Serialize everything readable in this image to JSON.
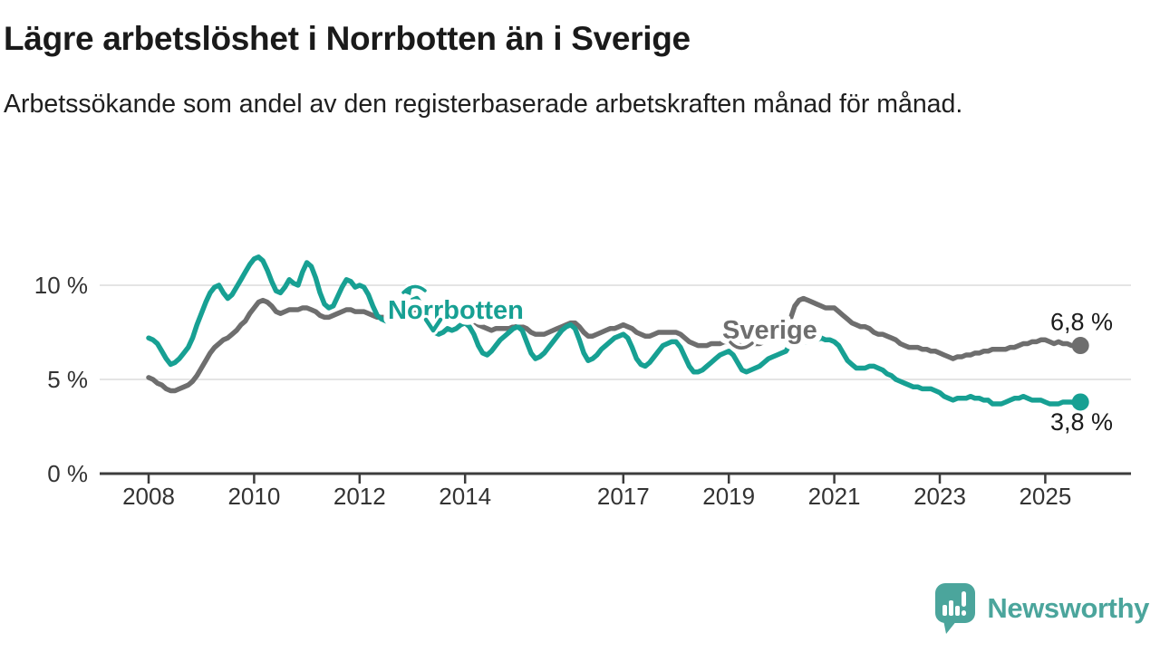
{
  "title": "Lägre arbetslöshet i Norrbotten än i Sverige",
  "subtitle": "Arbetssökande som andel av den registerbaserade arbetskraften månad för månad.",
  "branding": {
    "logo_text": "Newsworthy",
    "logo_color": "#4BA59C",
    "logo_icon": "speech-bubble-bar-chart"
  },
  "chart_data": {
    "type": "line",
    "unit": "%",
    "frequency": "monthly",
    "x_start": "2008-01",
    "x_end": "2025-09",
    "x_tick_years": [
      2008,
      2010,
      2012,
      2014,
      2017,
      2019,
      2021,
      2023,
      2025
    ],
    "x_tick_labels": [
      "2008",
      "2010",
      "2012",
      "2014",
      "2017",
      "2019",
      "2021",
      "2023",
      "2025"
    ],
    "y_ticks": [
      0,
      5,
      10
    ],
    "y_tick_labels": [
      "0 %",
      "5 %",
      "10 %"
    ],
    "ylim": [
      0,
      12
    ],
    "grid": "horizontal",
    "colors": {
      "norrbotten": "#17A093",
      "sverige": "#6E6E6E",
      "gridline": "#DCDCDC",
      "axis": "#3C3C3C",
      "tick_text": "#333333",
      "value_text": "#1A1A1A"
    },
    "series": [
      {
        "name": "Sverige",
        "color": "#6E6E6E",
        "end_value": 6.8,
        "end_label": "6,8 %",
        "values": [
          5.1,
          5.0,
          4.8,
          4.7,
          4.5,
          4.4,
          4.4,
          4.5,
          4.6,
          4.7,
          4.9,
          5.2,
          5.6,
          6.0,
          6.4,
          6.7,
          6.9,
          7.1,
          7.2,
          7.4,
          7.6,
          7.9,
          8.1,
          8.5,
          8.8,
          9.1,
          9.2,
          9.1,
          8.9,
          8.6,
          8.5,
          8.6,
          8.7,
          8.7,
          8.7,
          8.8,
          8.8,
          8.7,
          8.6,
          8.4,
          8.3,
          8.3,
          8.4,
          8.5,
          8.6,
          8.7,
          8.7,
          8.6,
          8.6,
          8.6,
          8.5,
          8.4,
          8.3,
          8.3,
          8.3,
          8.4,
          8.5,
          8.5,
          8.5,
          8.6,
          8.7,
          8.7,
          8.6,
          8.5,
          8.4,
          8.4,
          8.4,
          8.5,
          8.5,
          8.5,
          8.4,
          8.4,
          8.4,
          8.3,
          8.1,
          7.9,
          7.8,
          7.7,
          7.6,
          7.7,
          7.7,
          7.7,
          7.7,
          7.8,
          7.8,
          7.8,
          7.7,
          7.5,
          7.4,
          7.4,
          7.4,
          7.5,
          7.6,
          7.7,
          7.8,
          7.9,
          8.0,
          8.0,
          7.8,
          7.5,
          7.3,
          7.3,
          7.4,
          7.5,
          7.6,
          7.7,
          7.7,
          7.8,
          7.9,
          7.8,
          7.7,
          7.5,
          7.4,
          7.3,
          7.3,
          7.4,
          7.5,
          7.5,
          7.5,
          7.5,
          7.5,
          7.4,
          7.2,
          7.0,
          6.9,
          6.8,
          6.8,
          6.8,
          6.9,
          6.9,
          6.9,
          7.0,
          7.0,
          6.9,
          6.8,
          6.8,
          6.8,
          6.8,
          6.9,
          6.9,
          7.0,
          7.1,
          7.1,
          7.2,
          7.4,
          7.6,
          8.2,
          8.9,
          9.2,
          9.3,
          9.2,
          9.1,
          9.0,
          8.9,
          8.8,
          8.8,
          8.8,
          8.6,
          8.4,
          8.2,
          8.0,
          7.9,
          7.8,
          7.8,
          7.7,
          7.5,
          7.4,
          7.4,
          7.3,
          7.2,
          7.1,
          6.9,
          6.8,
          6.7,
          6.7,
          6.7,
          6.6,
          6.6,
          6.5,
          6.5,
          6.4,
          6.3,
          6.2,
          6.1,
          6.2,
          6.2,
          6.3,
          6.3,
          6.4,
          6.4,
          6.5,
          6.5,
          6.6,
          6.6,
          6.6,
          6.6,
          6.7,
          6.7,
          6.8,
          6.9,
          6.9,
          7.0,
          7.0,
          7.1,
          7.1,
          7.0,
          6.9,
          7.0,
          6.9,
          6.9,
          6.8,
          6.8,
          6.8
        ]
      },
      {
        "name": "Norrbotten",
        "color": "#17A093",
        "end_value": 3.8,
        "end_label": "3,8 %",
        "values": [
          7.2,
          7.1,
          6.9,
          6.5,
          6.1,
          5.8,
          5.9,
          6.1,
          6.4,
          6.7,
          7.2,
          7.9,
          8.5,
          9.1,
          9.6,
          9.9,
          10.0,
          9.6,
          9.3,
          9.5,
          9.9,
          10.3,
          10.7,
          11.1,
          11.4,
          11.5,
          11.3,
          10.8,
          10.2,
          9.7,
          9.6,
          9.9,
          10.3,
          10.1,
          10.0,
          10.7,
          11.2,
          11.0,
          10.4,
          9.6,
          9.0,
          8.8,
          8.9,
          9.4,
          9.9,
          10.3,
          10.2,
          9.9,
          10.0,
          9.9,
          9.5,
          8.9,
          8.4,
          8.2,
          8.1,
          8.3,
          8.5,
          8.4,
          8.5,
          8.8,
          9.2,
          9.3,
          9.0,
          8.5,
          7.9,
          7.5,
          7.4,
          7.5,
          7.7,
          7.6,
          7.7,
          7.9,
          8.0,
          7.8,
          7.4,
          6.8,
          6.4,
          6.3,
          6.5,
          6.8,
          7.1,
          7.3,
          7.5,
          7.7,
          7.8,
          7.6,
          7.0,
          6.4,
          6.1,
          6.2,
          6.4,
          6.7,
          7.0,
          7.3,
          7.6,
          7.8,
          7.9,
          7.7,
          7.1,
          6.4,
          6.0,
          6.1,
          6.3,
          6.6,
          6.8,
          7.0,
          7.2,
          7.3,
          7.4,
          7.2,
          6.7,
          6.1,
          5.8,
          5.7,
          5.9,
          6.2,
          6.5,
          6.8,
          6.9,
          7.0,
          7.0,
          6.7,
          6.2,
          5.7,
          5.4,
          5.4,
          5.5,
          5.7,
          5.9,
          6.1,
          6.3,
          6.4,
          6.5,
          6.3,
          5.9,
          5.5,
          5.4,
          5.5,
          5.6,
          5.7,
          5.9,
          6.1,
          6.2,
          6.3,
          6.4,
          6.5,
          6.9,
          7.1,
          7.1,
          7.0,
          7.0,
          7.0,
          7.1,
          7.2,
          7.1,
          7.1,
          7.0,
          6.8,
          6.4,
          6.0,
          5.8,
          5.6,
          5.6,
          5.6,
          5.7,
          5.7,
          5.6,
          5.5,
          5.3,
          5.2,
          5.0,
          4.9,
          4.8,
          4.7,
          4.6,
          4.6,
          4.5,
          4.5,
          4.5,
          4.4,
          4.3,
          4.1,
          4.0,
          3.9,
          4.0,
          4.0,
          4.0,
          4.1,
          4.0,
          4.0,
          3.9,
          3.9,
          3.7,
          3.7,
          3.7,
          3.8,
          3.9,
          4.0,
          4.0,
          4.1,
          4.0,
          3.9,
          3.9,
          3.9,
          3.8,
          3.7,
          3.7,
          3.7,
          3.8,
          3.8,
          3.8,
          3.7,
          3.8
        ]
      }
    ]
  }
}
